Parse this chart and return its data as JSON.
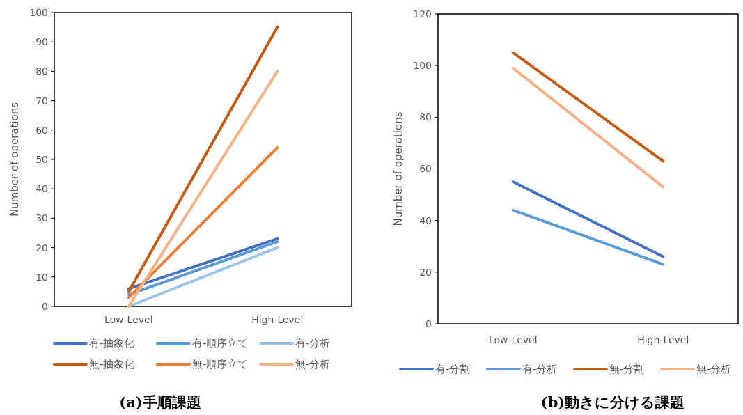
{
  "chart_data": [
    {
      "type": "line",
      "title": "(a)手順課題",
      "ylabel": "Number of operations",
      "categories": [
        "Low-Level",
        "High-Level"
      ],
      "ylim": [
        0,
        100
      ],
      "yticks": [
        0,
        10,
        20,
        30,
        40,
        50,
        60,
        70,
        80,
        90,
        100
      ],
      "legend": "bottom",
      "grid": false,
      "marker": "none",
      "series": [
        {
          "name": "有-抽象化",
          "color": "#4472c4",
          "values": [
            6,
            23
          ]
        },
        {
          "name": "有-順序立て",
          "color": "#5b9bd5",
          "values": [
            4,
            22
          ]
        },
        {
          "name": "有-分析",
          "color": "#9dc3e6",
          "values": [
            0,
            20
          ]
        },
        {
          "name": "無-抽象化",
          "color": "#c55a11",
          "values": [
            5,
            95
          ]
        },
        {
          "name": "無-順序立て",
          "color": "#ed7d31",
          "values": [
            3,
            54
          ]
        },
        {
          "name": "無-分析",
          "color": "#f4b183",
          "values": [
            0,
            80
          ]
        }
      ]
    },
    {
      "type": "line",
      "title": "(b)動きに分ける課題",
      "ylabel": "Number of operations",
      "categories": [
        "Low-Level",
        "High-Level"
      ],
      "ylim": [
        0,
        120
      ],
      "yticks": [
        0,
        20,
        40,
        60,
        80,
        100,
        120
      ],
      "legend": "bottom",
      "grid": false,
      "marker": "none",
      "series": [
        {
          "name": "有-分割",
          "color": "#4472c4",
          "values": [
            55,
            26
          ]
        },
        {
          "name": "有-分析",
          "color": "#5b9bd5",
          "values": [
            44,
            23
          ]
        },
        {
          "name": "無-分割",
          "color": "#c55a11",
          "values": [
            105,
            63
          ]
        },
        {
          "name": "無-分析",
          "color": "#f4b183",
          "values": [
            99,
            53
          ]
        }
      ]
    }
  ]
}
